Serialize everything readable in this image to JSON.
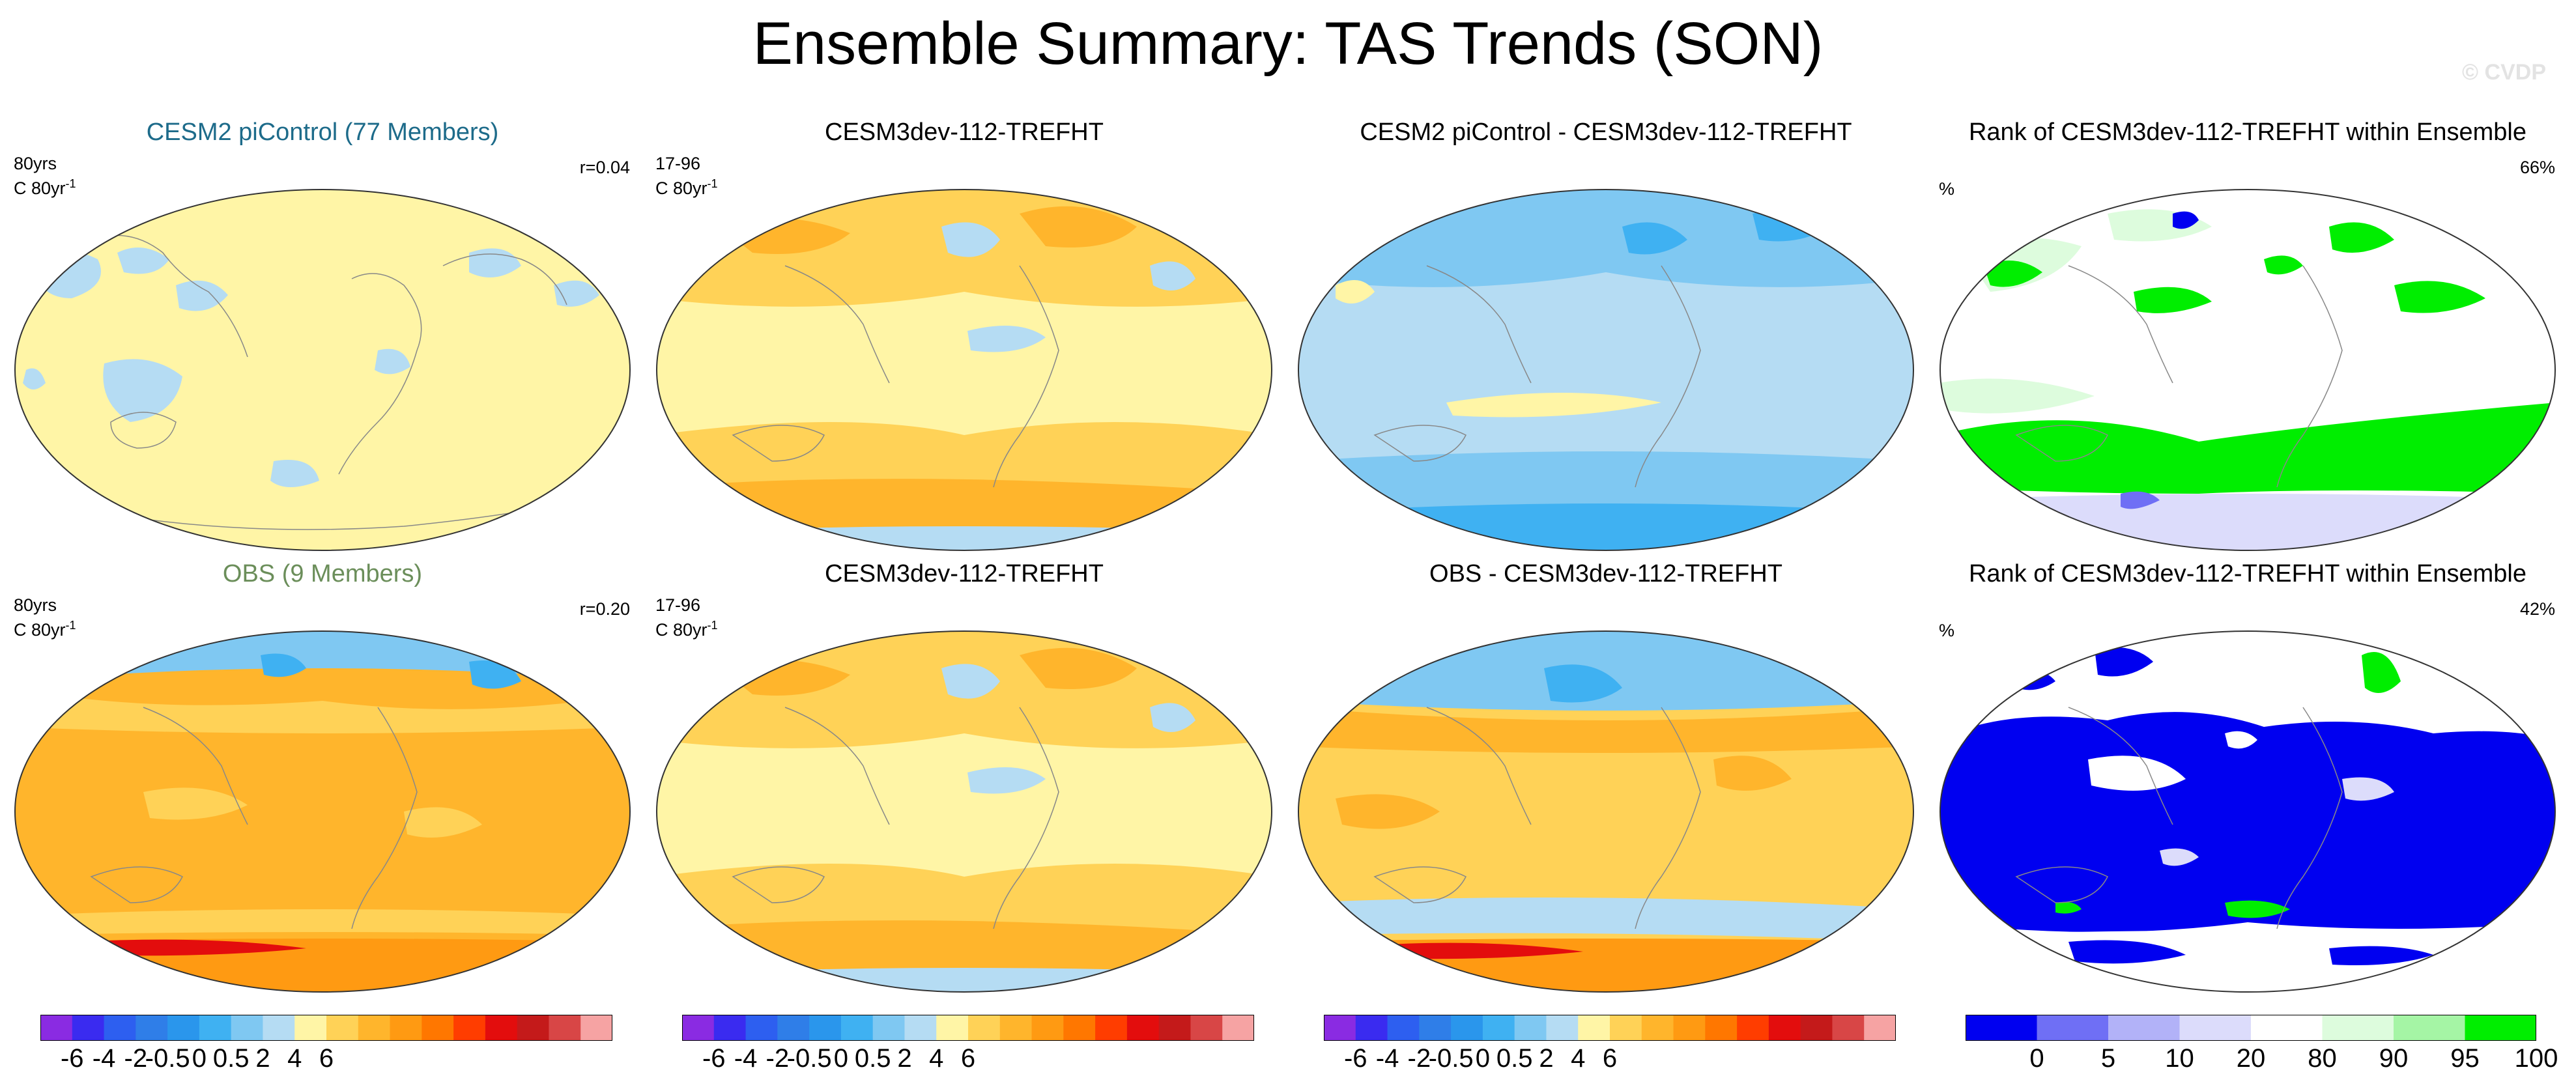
{
  "header": {
    "title": "Ensemble Summary: TAS Trends (SON)",
    "credit": "© CVDP"
  },
  "panels": {
    "p1": {
      "title": "CESM2 piControl (77 Members)",
      "left_line1": "80yrs",
      "left_unit": "C 80yr",
      "left_sup": "-1",
      "right": "r=0.04"
    },
    "p2": {
      "title": "CESM3dev-112-TREFHT",
      "left_line1": "17-96",
      "left_unit": "C 80yr",
      "left_sup": "-1"
    },
    "p3": {
      "title": "CESM2 piControl - CESM3dev-112-TREFHT"
    },
    "p4": {
      "title": "Rank of CESM3dev-112-TREFHT within Ensemble",
      "left": "%",
      "right": "66%"
    },
    "p5": {
      "title": "OBS (9 Members)",
      "left_line1": "80yrs",
      "left_unit": "C 80yr",
      "left_sup": "-1",
      "right": "r=0.20"
    },
    "p6": {
      "title": "CESM3dev-112-TREFHT",
      "left_line1": "17-96",
      "left_unit": "C 80yr",
      "left_sup": "-1"
    },
    "p7": {
      "title": "OBS - CESM3dev-112-TREFHT"
    },
    "p8": {
      "title": "Rank of CESM3dev-112-TREFHT within Ensemble",
      "left": "%",
      "right": "42%"
    }
  },
  "chart_data": [
    {
      "type": "heatmap",
      "title": "Ensemble Summary: TAS Trends (SON)",
      "colorbar_trend": {
        "ticks": [
          "-6",
          "-4",
          "-2",
          "-0.5",
          "0",
          "0.5",
          "2",
          "4",
          "6"
        ],
        "colors": [
          "#8a2be2",
          "#3a2bf0",
          "#2d5ff0",
          "#2f7ee8",
          "#2a96ec",
          "#3fb1f2",
          "#7fc8f2",
          "#b5dcf3",
          "#fff5a6",
          "#ffd257",
          "#ffb52c",
          "#ff9a12",
          "#ff7700",
          "#ff3d00",
          "#e30d0d",
          "#c41a1a",
          "#d84646",
          "#f6a3a3"
        ]
      },
      "colorbar_rank": {
        "ticks": [
          "0",
          "5",
          "10",
          "20",
          "80",
          "90",
          "95",
          "100"
        ],
        "colors": [
          "#0000f0",
          "#6f6ff5",
          "#b2b2f8",
          "#dcdcfb",
          "#ffffff",
          "#ddfcdd",
          "#a5f5a5",
          "#00ee00"
        ]
      },
      "series": [
        {
          "name": "CESM2 piControl (77 Members)",
          "pattern_correlation": 0.04
        },
        {
          "name": "OBS (9 Members)",
          "pattern_correlation": 0.2
        },
        {
          "name": "CESM3dev-112-TREFHT",
          "rank_vs_piControl_pct": 66
        },
        {
          "name": "CESM3dev-112-TREFHT",
          "rank_vs_OBS_pct": 42
        }
      ],
      "colors": {
        "cold": "#3fa8ec",
        "lightcold": "#b5dcf3",
        "neutral": "#fff5a6",
        "warm": "#ffd257",
        "orange": "#ffb52c",
        "hot": "#e30d0d",
        "rank_low": "#0000f0",
        "rank_high": "#00ee00",
        "rank_mid": "#ffffff"
      }
    }
  ]
}
